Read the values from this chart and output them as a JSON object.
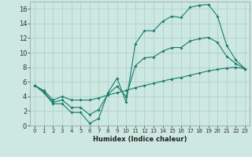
{
  "xlabel": "Humidex (Indice chaleur)",
  "background_color": "#cce8e0",
  "grid_color": "#aacccc",
  "line_color": "#1a7a6e",
  "xlim": [
    -0.5,
    23.5
  ],
  "ylim": [
    0,
    17
  ],
  "xticks": [
    0,
    1,
    2,
    3,
    4,
    5,
    6,
    7,
    8,
    9,
    10,
    11,
    12,
    13,
    14,
    15,
    16,
    17,
    18,
    19,
    20,
    21,
    22,
    23
  ],
  "yticks": [
    0,
    2,
    4,
    6,
    8,
    10,
    12,
    14,
    16
  ],
  "line1_x": [
    0,
    1,
    2,
    3,
    4,
    5,
    6,
    7,
    8,
    9,
    10,
    11,
    12,
    13,
    14,
    15,
    16,
    17,
    18,
    19,
    20,
    21,
    22,
    23
  ],
  "line1_y": [
    5.5,
    4.5,
    3.0,
    3.0,
    1.8,
    1.8,
    0.3,
    1.0,
    4.5,
    6.5,
    3.2,
    11.2,
    13.0,
    13.0,
    14.3,
    15.0,
    14.8,
    16.2,
    16.5,
    16.6,
    15.0,
    11.0,
    9.0,
    7.8
  ],
  "line2_x": [
    0,
    1,
    2,
    3,
    4,
    5,
    6,
    7,
    8,
    9,
    10,
    11,
    12,
    13,
    14,
    15,
    16,
    17,
    18,
    19,
    20,
    21,
    22,
    23
  ],
  "line2_y": [
    5.5,
    4.8,
    3.5,
    4.0,
    3.5,
    3.5,
    3.5,
    3.8,
    4.2,
    4.5,
    4.8,
    5.2,
    5.5,
    5.8,
    6.1,
    6.4,
    6.6,
    6.9,
    7.2,
    7.5,
    7.7,
    7.9,
    8.0,
    7.8
  ],
  "line3_x": [
    0,
    1,
    2,
    3,
    4,
    5,
    6,
    7,
    8,
    9,
    10,
    11,
    12,
    13,
    14,
    15,
    16,
    17,
    18,
    19,
    20,
    21,
    22,
    23
  ],
  "line3_y": [
    5.5,
    4.6,
    3.2,
    3.5,
    2.5,
    2.5,
    1.5,
    2.2,
    4.3,
    5.4,
    4.0,
    8.2,
    9.3,
    9.4,
    10.2,
    10.7,
    10.7,
    11.6,
    11.9,
    12.1,
    11.4,
    9.5,
    8.5,
    7.8
  ],
  "xlabel_fontsize": 6,
  "tick_fontsize": 5,
  "marker_size": 2,
  "line_width": 0.8
}
